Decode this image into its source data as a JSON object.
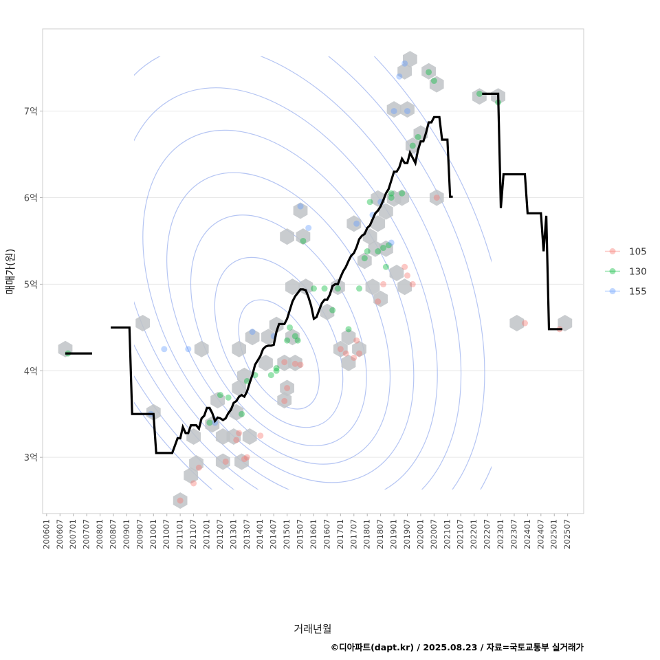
{
  "chart_data": {
    "type": "scatter",
    "title": "",
    "xlabel": "거래년월",
    "ylabel": "매매가(원)",
    "caption": "©디아파트(dapt.kr) / 2025.08.23 / 자료=국토교통부 실거래가",
    "xlim": [
      2005.85,
      2026.1
    ],
    "ylim": [
      2.35,
      7.95
    ],
    "grid": true,
    "y_ticks": [
      {
        "value": 3,
        "label": "3억"
      },
      {
        "value": 4,
        "label": "4억"
      },
      {
        "value": 5,
        "label": "5억"
      },
      {
        "value": 6,
        "label": "6억"
      },
      {
        "value": 7,
        "label": "7억"
      }
    ],
    "x_ticks": [
      "200601",
      "200607",
      "200701",
      "200707",
      "200801",
      "200807",
      "200901",
      "200907",
      "201001",
      "201007",
      "201101",
      "201107",
      "201201",
      "201207",
      "201301",
      "201307",
      "201401",
      "201407",
      "201501",
      "201507",
      "201601",
      "201607",
      "201701",
      "201707",
      "201801",
      "201807",
      "201901",
      "201907",
      "202001",
      "202007",
      "202101",
      "202107",
      "202201",
      "202207",
      "202301",
      "202307",
      "202401",
      "202407",
      "202501",
      "202507"
    ],
    "legend": {
      "position": "right",
      "entries": [
        {
          "label": "105",
          "color": "#F8766D"
        },
        {
          "label": "130",
          "color": "#00BA38"
        },
        {
          "label": "155",
          "color": "#619CFF"
        }
      ]
    },
    "colors": {
      "hex": "#bfc3c7",
      "contour": "#8da6ec",
      "line": "#000000",
      "grid": "#e6e6e6",
      "panel_border": "#cccccc"
    },
    "series": [
      {
        "name": "105",
        "points": [
          [
            2011.0,
            2.5
          ],
          [
            2011.5,
            2.7
          ],
          [
            2011.7,
            2.88
          ],
          [
            2012.7,
            2.95
          ],
          [
            2013.2,
            3.28
          ],
          [
            2013.1,
            3.2
          ],
          [
            2013.4,
            2.98
          ],
          [
            2013.5,
            3.0
          ],
          [
            2014.0,
            3.25
          ],
          [
            2014.9,
            3.65
          ],
          [
            2015.0,
            3.8
          ],
          [
            2014.9,
            4.1
          ],
          [
            2015.3,
            4.08
          ],
          [
            2015.5,
            4.07
          ],
          [
            2017.0,
            4.25
          ],
          [
            2017.2,
            4.2
          ],
          [
            2017.5,
            4.15
          ],
          [
            2017.6,
            4.35
          ],
          [
            2017.7,
            4.2
          ],
          [
            2018.4,
            4.8
          ],
          [
            2018.6,
            5.0
          ],
          [
            2019.4,
            5.2
          ],
          [
            2019.5,
            5.1
          ],
          [
            2019.7,
            5.0
          ],
          [
            2020.6,
            6.0
          ],
          [
            2023.9,
            4.55
          ],
          [
            2025.2,
            4.48
          ]
        ]
      },
      {
        "name": "130",
        "points": [
          [
            2006.8,
            4.2
          ],
          [
            2012.1,
            3.4
          ],
          [
            2012.5,
            3.72
          ],
          [
            2012.8,
            3.69
          ],
          [
            2013.3,
            3.5
          ],
          [
            2013.5,
            3.88
          ],
          [
            2013.8,
            3.95
          ],
          [
            2014.4,
            3.95
          ],
          [
            2014.6,
            4.0
          ],
          [
            2014.6,
            4.03
          ],
          [
            2015.0,
            4.35
          ],
          [
            2015.1,
            4.5
          ],
          [
            2015.3,
            4.4
          ],
          [
            2015.4,
            4.35
          ],
          [
            2015.6,
            5.5
          ],
          [
            2016.0,
            4.95
          ],
          [
            2016.4,
            4.95
          ],
          [
            2016.7,
            4.7
          ],
          [
            2016.9,
            4.95
          ],
          [
            2017.3,
            4.48
          ],
          [
            2017.7,
            4.95
          ],
          [
            2017.9,
            5.3
          ],
          [
            2018.0,
            5.38
          ],
          [
            2018.1,
            5.95
          ],
          [
            2018.4,
            5.38
          ],
          [
            2018.6,
            5.42
          ],
          [
            2018.7,
            5.2
          ],
          [
            2018.8,
            5.45
          ],
          [
            2018.9,
            6.05
          ],
          [
            2018.9,
            6.0
          ],
          [
            2019.3,
            6.05
          ],
          [
            2019.7,
            6.6
          ],
          [
            2019.9,
            6.7
          ],
          [
            2020.3,
            7.45
          ],
          [
            2020.5,
            7.35
          ],
          [
            2022.2,
            7.2
          ],
          [
            2022.9,
            7.1
          ]
        ]
      },
      {
        "name": "155",
        "points": [
          [
            2009.9,
            3.5
          ],
          [
            2010.4,
            4.25
          ],
          [
            2011.3,
            4.25
          ],
          [
            2012.3,
            3.4
          ],
          [
            2013.7,
            4.45
          ],
          [
            2014.5,
            4.4
          ],
          [
            2015.5,
            5.9
          ],
          [
            2015.8,
            5.65
          ],
          [
            2017.6,
            5.7
          ],
          [
            2018.2,
            5.8
          ],
          [
            2018.5,
            5.95
          ],
          [
            2018.9,
            5.48
          ],
          [
            2019.0,
            7.0
          ],
          [
            2019.2,
            7.4
          ],
          [
            2019.4,
            7.55
          ],
          [
            2019.5,
            7.0
          ]
        ]
      }
    ],
    "moving_average": [
      {
        "segment": 1,
        "x": [
          2006.7,
          2007.7
        ],
        "y": [
          4.2,
          4.2
        ]
      },
      {
        "segment": 2,
        "x": [
          2008.4,
          2009.1,
          2009.2,
          2009.4,
          2009.7,
          2009.8,
          2010.0,
          2010.1,
          2010.4,
          2010.5,
          2010.6,
          2010.7,
          2010.9,
          2011.0,
          2011.1,
          2011.2,
          2011.3,
          2011.4,
          2011.6,
          2011.7,
          2011.8,
          2011.9,
          2012.0,
          2012.1,
          2012.2,
          2012.3,
          2012.4,
          2012.5,
          2012.6,
          2012.7,
          2012.8,
          2012.9,
          2013.0,
          2013.1,
          2013.2,
          2013.3,
          2013.4,
          2013.5,
          2013.6,
          2013.7,
          2013.8,
          2013.9,
          2014.0,
          2014.1,
          2014.2,
          2014.3,
          2014.4,
          2014.5,
          2014.6,
          2014.7,
          2014.8,
          2014.9,
          2015.0,
          2015.1,
          2015.2,
          2015.3,
          2015.4,
          2015.5,
          2015.6,
          2015.7,
          2015.8,
          2015.9,
          2016.0,
          2016.1,
          2016.2,
          2016.3,
          2016.4,
          2016.5,
          2016.6,
          2016.7,
          2016.8,
          2016.9,
          2017.0,
          2017.1,
          2017.2,
          2017.3,
          2017.4,
          2017.5,
          2017.6,
          2017.7,
          2017.8,
          2017.9,
          2018.0,
          2018.1,
          2018.2,
          2018.3,
          2018.4,
          2018.5,
          2018.6,
          2018.7,
          2018.8,
          2018.9,
          2019.0,
          2019.1,
          2019.2,
          2019.3,
          2019.4,
          2019.5,
          2019.6,
          2019.7,
          2019.8,
          2019.9,
          2020.0,
          2020.1,
          2020.2,
          2020.3,
          2020.4,
          2020.5,
          2020.6,
          2020.7,
          2020.8,
          2020.9,
          2021.0,
          2021.1,
          2021.2
        ],
        "y": [
          4.5,
          4.5,
          3.5,
          3.5,
          3.5,
          3.5,
          3.5,
          3.05,
          3.05,
          3.05,
          3.05,
          3.05,
          3.22,
          3.22,
          3.35,
          3.28,
          3.28,
          3.37,
          3.37,
          3.33,
          3.45,
          3.48,
          3.57,
          3.57,
          3.51,
          3.42,
          3.46,
          3.45,
          3.43,
          3.45,
          3.51,
          3.55,
          3.63,
          3.65,
          3.7,
          3.72,
          3.7,
          3.76,
          3.86,
          3.95,
          4.07,
          4.12,
          4.17,
          4.25,
          4.28,
          4.29,
          4.29,
          4.3,
          4.45,
          4.54,
          4.54,
          4.54,
          4.6,
          4.7,
          4.8,
          4.86,
          4.9,
          4.94,
          4.94,
          4.93,
          4.85,
          4.75,
          4.6,
          4.62,
          4.7,
          4.78,
          4.82,
          4.82,
          4.88,
          4.98,
          5.0,
          5.0,
          5.08,
          5.15,
          5.2,
          5.27,
          5.33,
          5.36,
          5.43,
          5.52,
          5.56,
          5.58,
          5.65,
          5.68,
          5.75,
          5.82,
          5.85,
          5.9,
          5.97,
          6.05,
          6.1,
          6.2,
          6.3,
          6.3,
          6.35,
          6.45,
          6.4,
          6.4,
          6.52,
          6.46,
          6.4,
          6.55,
          6.65,
          6.65,
          6.75,
          6.87,
          6.87,
          6.93,
          6.93,
          6.93,
          6.67,
          6.67,
          6.67,
          6.01,
          6.01
        ]
      },
      {
        "segment": 3,
        "x": [
          2022.3,
          2022.9,
          2023.0,
          2023.1,
          2023.2,
          2023.3,
          2023.9,
          2024.0,
          2024.5,
          2024.6,
          2024.7,
          2024.8,
          2024.9,
          2025.3
        ],
        "y": [
          7.2,
          7.2,
          5.88,
          6.27,
          6.27,
          6.27,
          6.27,
          5.82,
          5.82,
          5.38,
          5.79,
          4.48,
          4.48,
          4.48
        ]
      }
    ],
    "hex_bins": [
      [
        2006.7,
        4.25
      ],
      [
        2009.6,
        4.55
      ],
      [
        2010.0,
        3.52
      ],
      [
        2011.0,
        2.5
      ],
      [
        2011.4,
        2.79
      ],
      [
        2011.6,
        2.93
      ],
      [
        2011.5,
        3.24
      ],
      [
        2011.8,
        4.25
      ],
      [
        2012.4,
        3.66
      ],
      [
        2012.2,
        3.38
      ],
      [
        2012.6,
        3.24
      ],
      [
        2012.6,
        2.95
      ],
      [
        2013.1,
        3.52
      ],
      [
        2013.0,
        3.24
      ],
      [
        2013.2,
        3.8
      ],
      [
        2013.3,
        2.95
      ],
      [
        2013.6,
        3.24
      ],
      [
        2013.4,
        3.94
      ],
      [
        2013.2,
        4.25
      ],
      [
        2013.7,
        4.39
      ],
      [
        2014.3,
        4.39
      ],
      [
        2014.6,
        4.53
      ],
      [
        2014.2,
        4.09
      ],
      [
        2014.9,
        4.09
      ],
      [
        2014.9,
        3.66
      ],
      [
        2015.0,
        3.8
      ],
      [
        2015.3,
        4.09
      ],
      [
        2015.2,
        4.39
      ],
      [
        2015.2,
        4.97
      ],
      [
        2015.0,
        5.55
      ],
      [
        2015.5,
        5.85
      ],
      [
        2015.6,
        5.55
      ],
      [
        2015.7,
        4.97
      ],
      [
        2016.5,
        4.68
      ],
      [
        2016.9,
        4.97
      ],
      [
        2017.0,
        4.25
      ],
      [
        2017.3,
        4.39
      ],
      [
        2017.3,
        4.09
      ],
      [
        2017.7,
        4.25
      ],
      [
        2017.5,
        5.7
      ],
      [
        2017.9,
        5.27
      ],
      [
        2018.1,
        5.55
      ],
      [
        2018.2,
        4.97
      ],
      [
        2018.3,
        5.41
      ],
      [
        2018.4,
        5.7
      ],
      [
        2018.5,
        4.83
      ],
      [
        2018.4,
        5.99
      ],
      [
        2018.7,
        5.41
      ],
      [
        2018.7,
        5.84
      ],
      [
        2019.0,
        5.99
      ],
      [
        2019.1,
        5.13
      ],
      [
        2019.4,
        4.97
      ],
      [
        2019.3,
        6.0
      ],
      [
        2019.4,
        7.46
      ],
      [
        2019.6,
        7.6
      ],
      [
        2019.0,
        7.02
      ],
      [
        2019.5,
        7.02
      ],
      [
        2019.7,
        6.6
      ],
      [
        2020.0,
        6.74
      ],
      [
        2020.3,
        7.46
      ],
      [
        2020.6,
        7.31
      ],
      [
        2020.6,
        6.0
      ],
      [
        2022.2,
        7.17
      ],
      [
        2022.9,
        7.17
      ],
      [
        2023.6,
        4.55
      ],
      [
        2025.4,
        4.55
      ]
    ],
    "density_peak": [
      2014.7,
      4.05
    ]
  }
}
